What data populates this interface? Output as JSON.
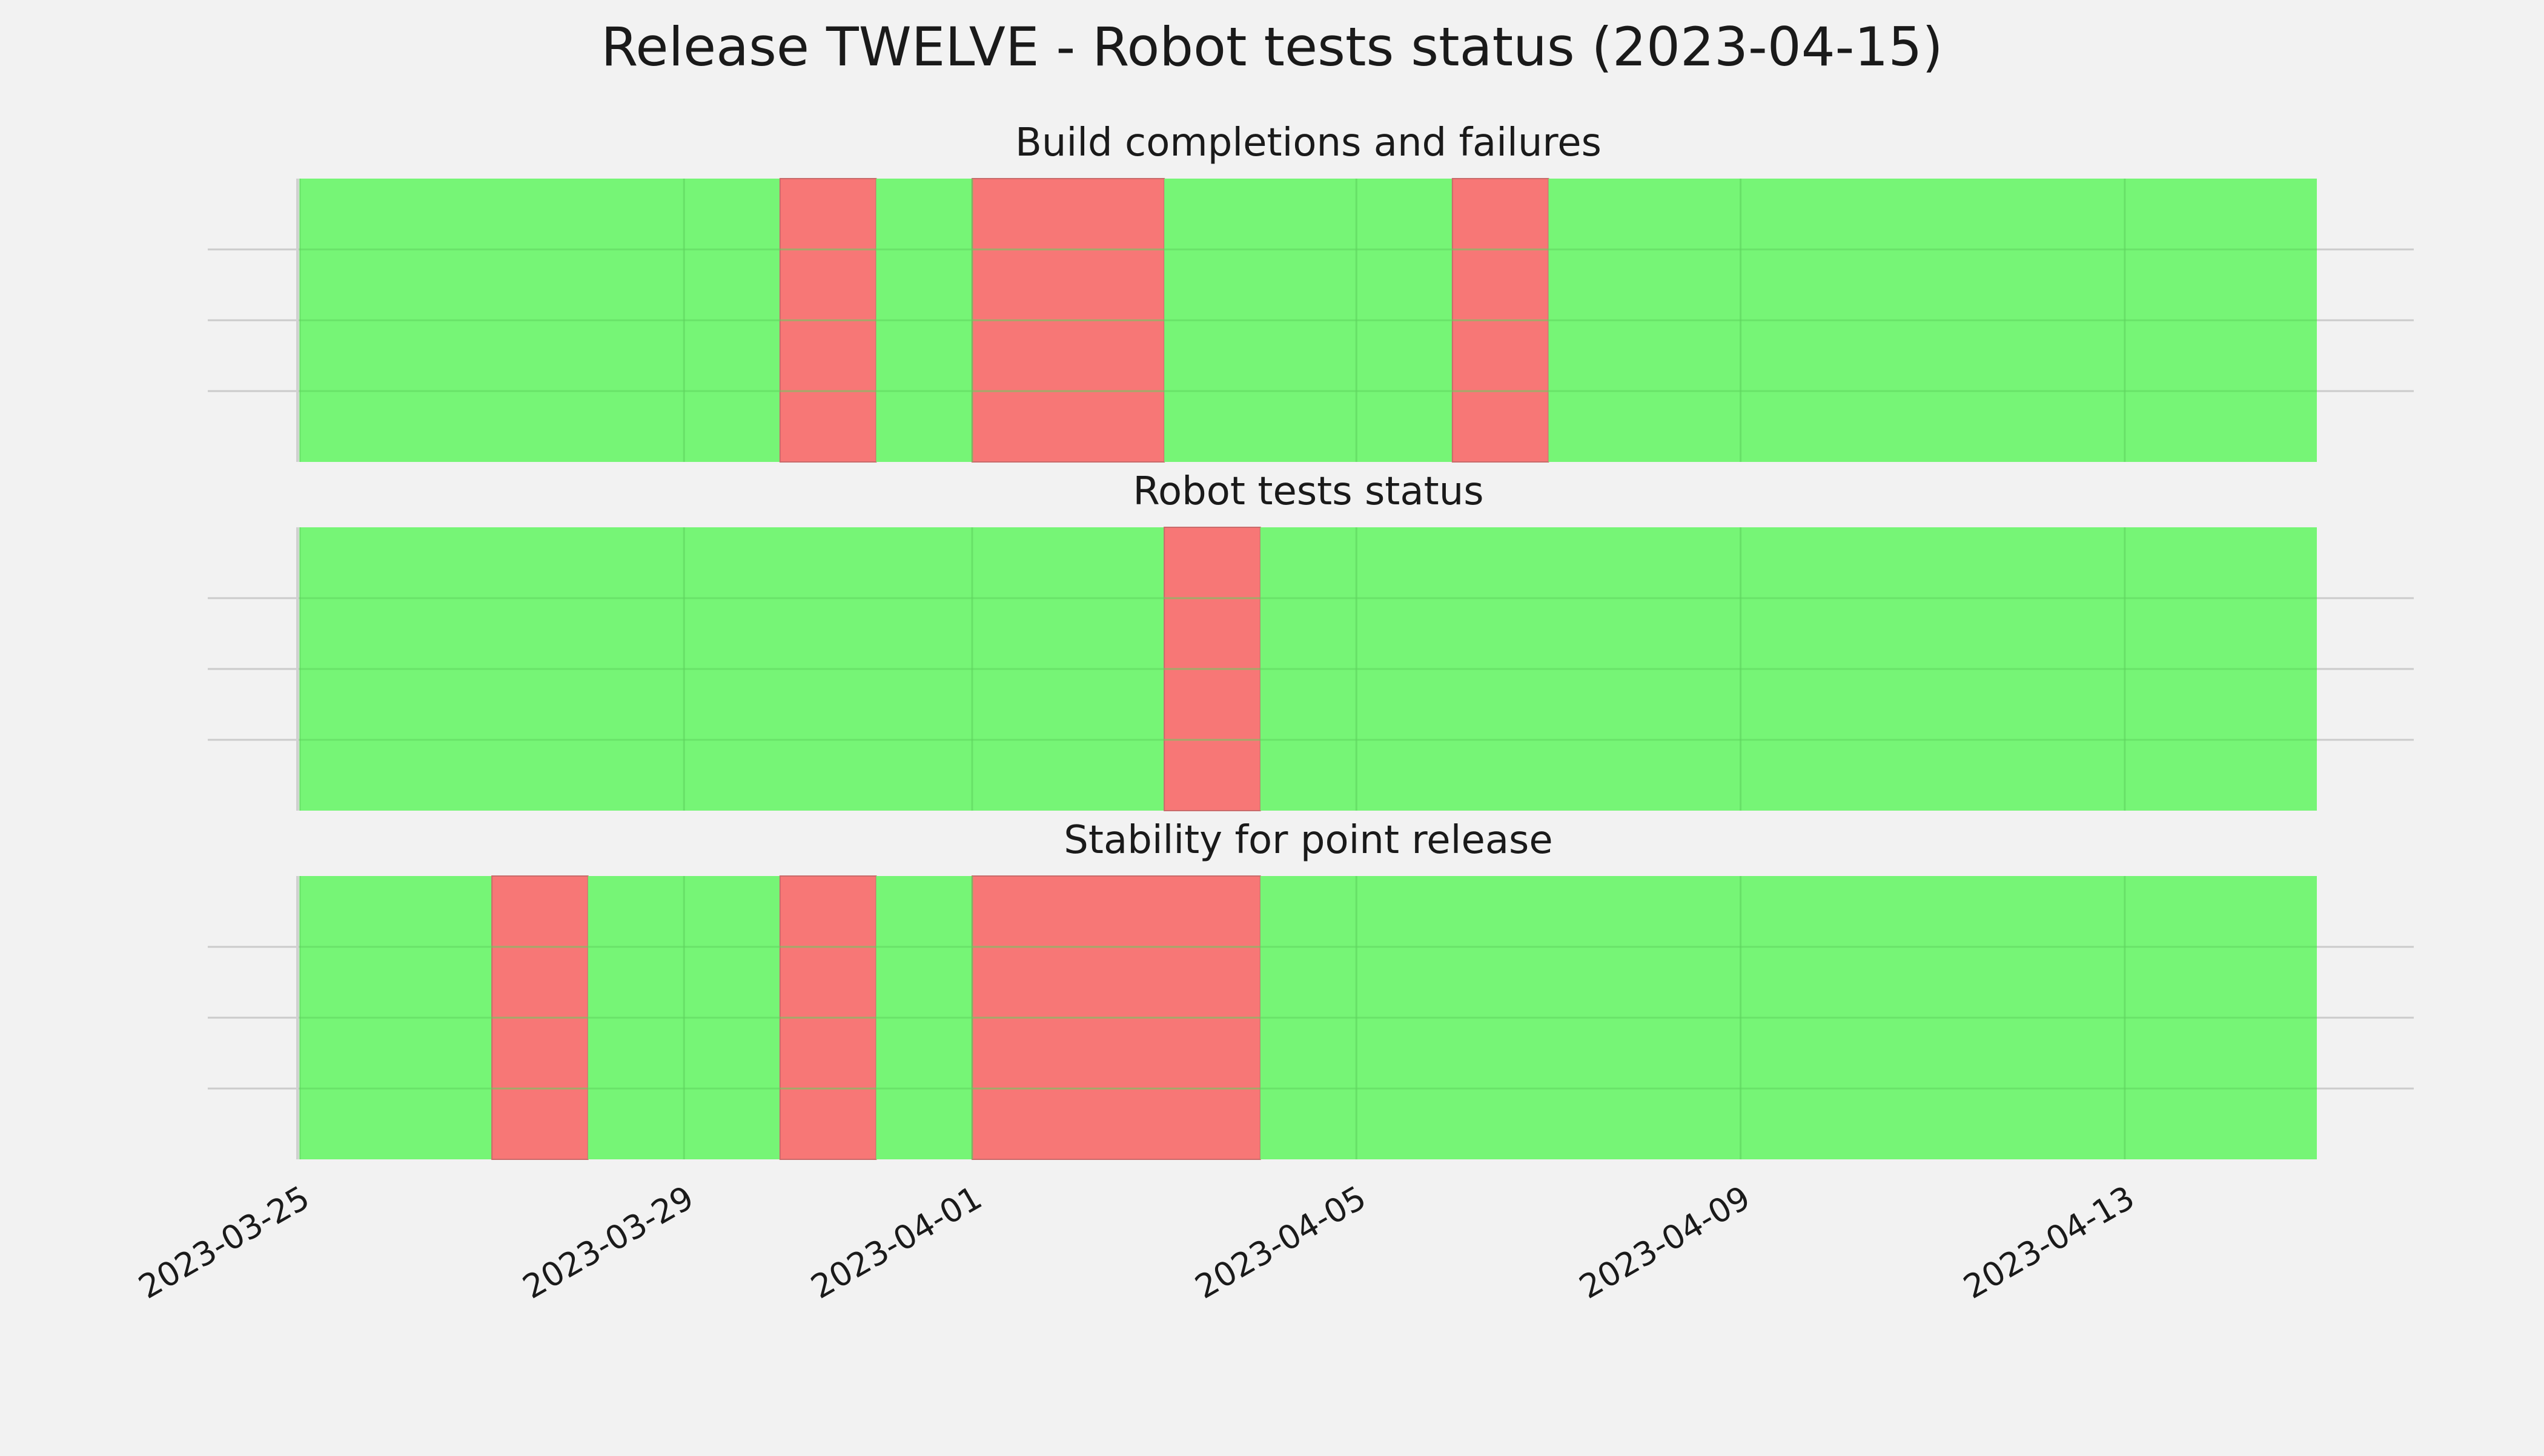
{
  "colors": {
    "background": "#f2f2f2",
    "pass": "#76f576",
    "fail": "#f77776",
    "grid": "#cbcbcb"
  },
  "chart_data": {
    "type": "timeline-status",
    "title": "Release TWELVE - Robot tests status (2023-04-15)",
    "x_axis": {
      "range": [
        "2023-03-25",
        "2023-04-15"
      ],
      "ticks": [
        "2023-03-25",
        "2023-03-29",
        "2023-04-01",
        "2023-04-05",
        "2023-04-09",
        "2023-04-13"
      ]
    },
    "grid": true,
    "panels": [
      {
        "title": "Build completions and failures",
        "segments": [
          {
            "start": "2023-03-25",
            "end": "2023-03-30",
            "status": "pass"
          },
          {
            "start": "2023-03-30",
            "end": "2023-03-31",
            "status": "fail"
          },
          {
            "start": "2023-03-31",
            "end": "2023-04-01",
            "status": "pass"
          },
          {
            "start": "2023-04-01",
            "end": "2023-04-03",
            "status": "fail"
          },
          {
            "start": "2023-04-03",
            "end": "2023-04-06",
            "status": "pass"
          },
          {
            "start": "2023-04-06",
            "end": "2023-04-07",
            "status": "fail"
          },
          {
            "start": "2023-04-07",
            "end": "2023-04-15",
            "status": "pass"
          }
        ]
      },
      {
        "title": "Robot tests status",
        "segments": [
          {
            "start": "2023-03-25",
            "end": "2023-04-03",
            "status": "pass"
          },
          {
            "start": "2023-04-03",
            "end": "2023-04-04",
            "status": "fail"
          },
          {
            "start": "2023-04-04",
            "end": "2023-04-15",
            "status": "pass"
          }
        ]
      },
      {
        "title": "Stability for point release",
        "segments": [
          {
            "start": "2023-03-25",
            "end": "2023-03-27",
            "status": "pass"
          },
          {
            "start": "2023-03-27",
            "end": "2023-03-28",
            "status": "fail"
          },
          {
            "start": "2023-03-28",
            "end": "2023-03-30",
            "status": "pass"
          },
          {
            "start": "2023-03-30",
            "end": "2023-03-31",
            "status": "fail"
          },
          {
            "start": "2023-03-31",
            "end": "2023-04-01",
            "status": "pass"
          },
          {
            "start": "2023-04-01",
            "end": "2023-04-04",
            "status": "fail"
          },
          {
            "start": "2023-04-04",
            "end": "2023-04-15",
            "status": "pass"
          }
        ]
      }
    ]
  }
}
